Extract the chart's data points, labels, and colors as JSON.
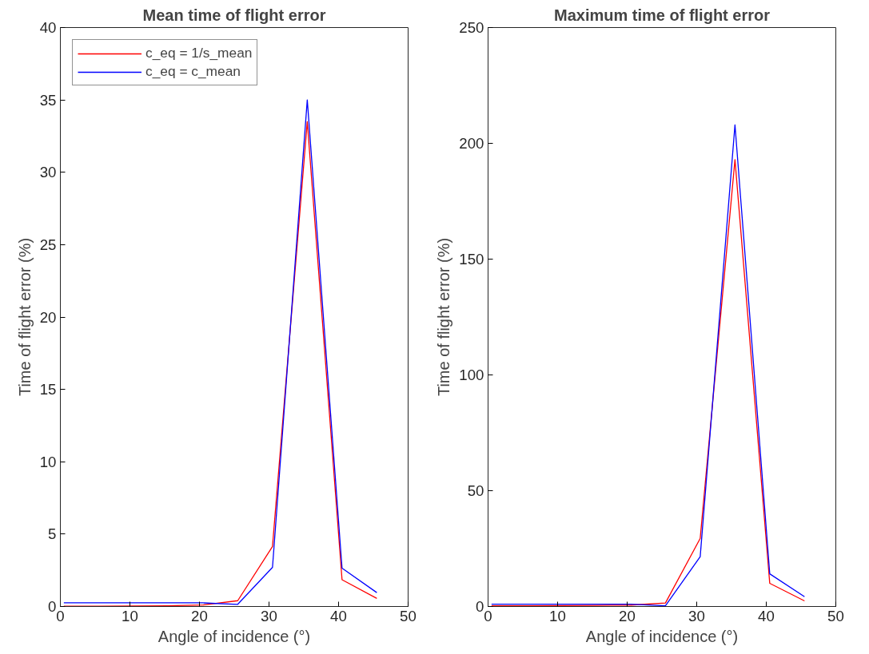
{
  "chart_data": [
    {
      "type": "line",
      "title": "Mean time of flight error",
      "xlabel": "Angle of incidence (°)",
      "ylabel": "Time of flight error (%)",
      "x": [
        0.5,
        5.5,
        10.5,
        15.5,
        20.5,
        25.5,
        30.5,
        35.5,
        40.5,
        45.5
      ],
      "series": [
        {
          "name": "c_eq = 1/s_mean",
          "color": "#ff0000",
          "values": [
            0.02,
            0.02,
            0.03,
            0.05,
            0.1,
            0.4,
            4.15,
            33.5,
            1.85,
            0.56
          ]
        },
        {
          "name": "c_eq = c_mean",
          "color": "#0000ff",
          "values": [
            0.25,
            0.25,
            0.25,
            0.25,
            0.25,
            0.15,
            2.7,
            35,
            2.65,
            0.96
          ]
        }
      ],
      "xlim": [
        0,
        50
      ],
      "xticks": [
        0,
        10,
        20,
        30,
        40,
        50
      ],
      "ylim": [
        0,
        40
      ],
      "yticks": [
        0,
        5,
        10,
        15,
        20,
        25,
        30,
        35,
        40
      ],
      "grid": false,
      "legend": "top left",
      "marker": "none",
      "line_style": "solid"
    },
    {
      "type": "line",
      "title": "Maximum time of flight error",
      "xlabel": "Angle of incidence (°)",
      "ylabel": "Time of flight error (%)",
      "x": [
        0.5,
        5.5,
        10.5,
        15.5,
        20.5,
        25.5,
        30.5,
        35.5,
        40.5,
        45.5
      ],
      "series": [
        {
          "color": "#ff0000",
          "values": [
            0.3,
            0.3,
            0.4,
            0.5,
            0.6,
            1.5,
            29.4,
            193,
            10,
            2.4
          ]
        },
        {
          "color": "#0000ff",
          "values": [
            1,
            1,
            1,
            1,
            1,
            0.3,
            21.5,
            208,
            14.1,
            4.2
          ]
        }
      ],
      "xlim": [
        0,
        50
      ],
      "xticks": [
        0,
        10,
        20,
        30,
        40,
        50
      ],
      "ylim": [
        0,
        250
      ],
      "yticks": [
        0,
        50,
        100,
        150,
        200,
        250
      ],
      "grid": false,
      "legend": false,
      "marker": "none",
      "line_style": "solid"
    }
  ]
}
